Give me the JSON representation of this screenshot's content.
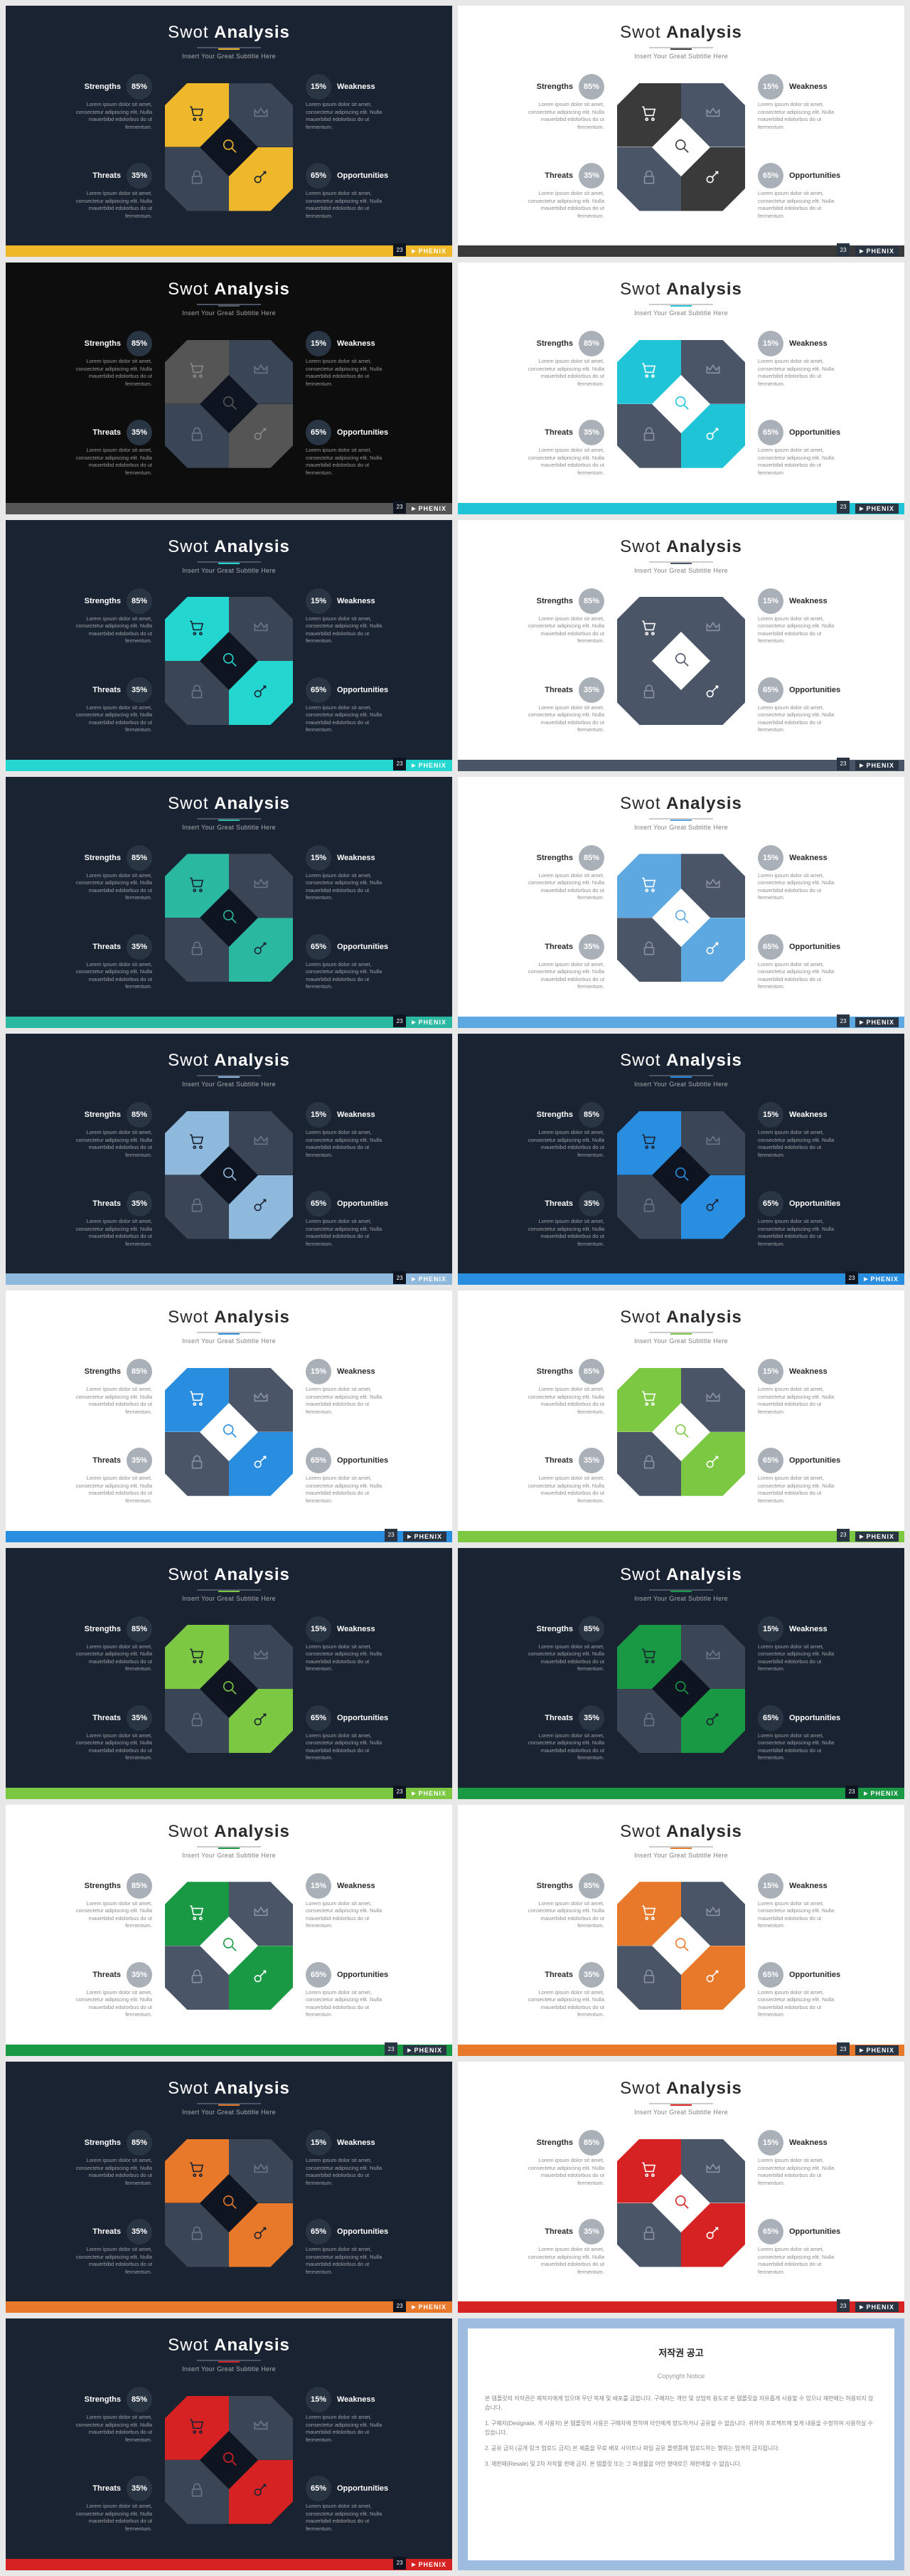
{
  "title_light": "Swot",
  "title_bold": "Analysis",
  "subtitle": "Insert Your Great Subtitle Here",
  "quads": {
    "tl": {
      "label": "Strengths",
      "pct": "85%"
    },
    "tr": {
      "label": "Weakness",
      "pct": "15%"
    },
    "bl": {
      "label": "Threats",
      "pct": "35%"
    },
    "br": {
      "label": "Opportunities",
      "pct": "65%"
    }
  },
  "desc": "Lorem ipsum dolor sit amet, consectetur adipiscing elit. Nulla mauerbibd edolorbus do ut fermentum.",
  "brand": "PHENIX",
  "neutral_seg_dark": "#3a4656",
  "neutral_seg_light": "#4a5668",
  "slides": [
    {
      "bg": "dark",
      "accent": "#eeb82a",
      "page": "23"
    },
    {
      "bg": "light",
      "accent": "#3a3a3a",
      "page": "23"
    },
    {
      "bg": "black",
      "accent": "#555555",
      "page": "23"
    },
    {
      "bg": "light",
      "accent": "#1fc4d6",
      "page": "23"
    },
    {
      "bg": "dark",
      "accent": "#24d6d0",
      "page": "23"
    },
    {
      "bg": "light",
      "accent": "#4a5668",
      "page": "23"
    },
    {
      "bg": "dark",
      "accent": "#2bb8a0",
      "page": "23"
    },
    {
      "bg": "light",
      "accent": "#5da8e0",
      "page": "23"
    },
    {
      "bg": "dark",
      "accent": "#8fb8dd",
      "page": "23"
    },
    {
      "bg": "dark",
      "accent": "#2a8ee0",
      "page": "23"
    },
    {
      "bg": "light",
      "accent": "#2a8ee0",
      "page": "23"
    },
    {
      "bg": "light",
      "accent": "#7cc842",
      "page": "23"
    },
    {
      "bg": "dark",
      "accent": "#7cc842",
      "page": "23"
    },
    {
      "bg": "dark",
      "accent": "#1a9944",
      "page": "23"
    },
    {
      "bg": "light",
      "accent": "#1a9944",
      "page": "23"
    },
    {
      "bg": "light",
      "accent": "#e8792a",
      "page": "23"
    },
    {
      "bg": "dark",
      "accent": "#e8792a",
      "page": "23"
    },
    {
      "bg": "light",
      "accent": "#d62222",
      "page": "23"
    },
    {
      "bg": "dark",
      "accent": "#d62222",
      "page": "23"
    }
  ],
  "copyright": {
    "title": "저작권 공고",
    "sub": "Copyright Notice",
    "paras": [
      "본 템플릿의 저작권은 제작자에게 있으며 무단 복제 및 배포를 금합니다. 구매자는 개인 및 상업적 용도로 본 템플릿을 자유롭게 사용할 수 있으나 재판매는 허용되지 않습니다.",
      "1. 구매자(Designate, 개 사용자) 본 템플릿의 사용은 구매자에 한하며 타인에게 양도하거나 공유할 수 없습니다. 귀하의 프로젝트에 맞게 내용을 수정하여 사용하실 수 있습니다.",
      "2. 공유 금지 (공개 링크 업로드 금지) 본 제품을 무료 배포 사이트나 파일 공유 플랫폼에 업로드하는 행위는 엄격히 금지됩니다.",
      "3. 재판매(Resale) 및 2차 저작물 판매 금지. 본 템플릿 또는 그 파생물을 어떤 형태로든 재판매할 수 없습니다."
    ]
  }
}
